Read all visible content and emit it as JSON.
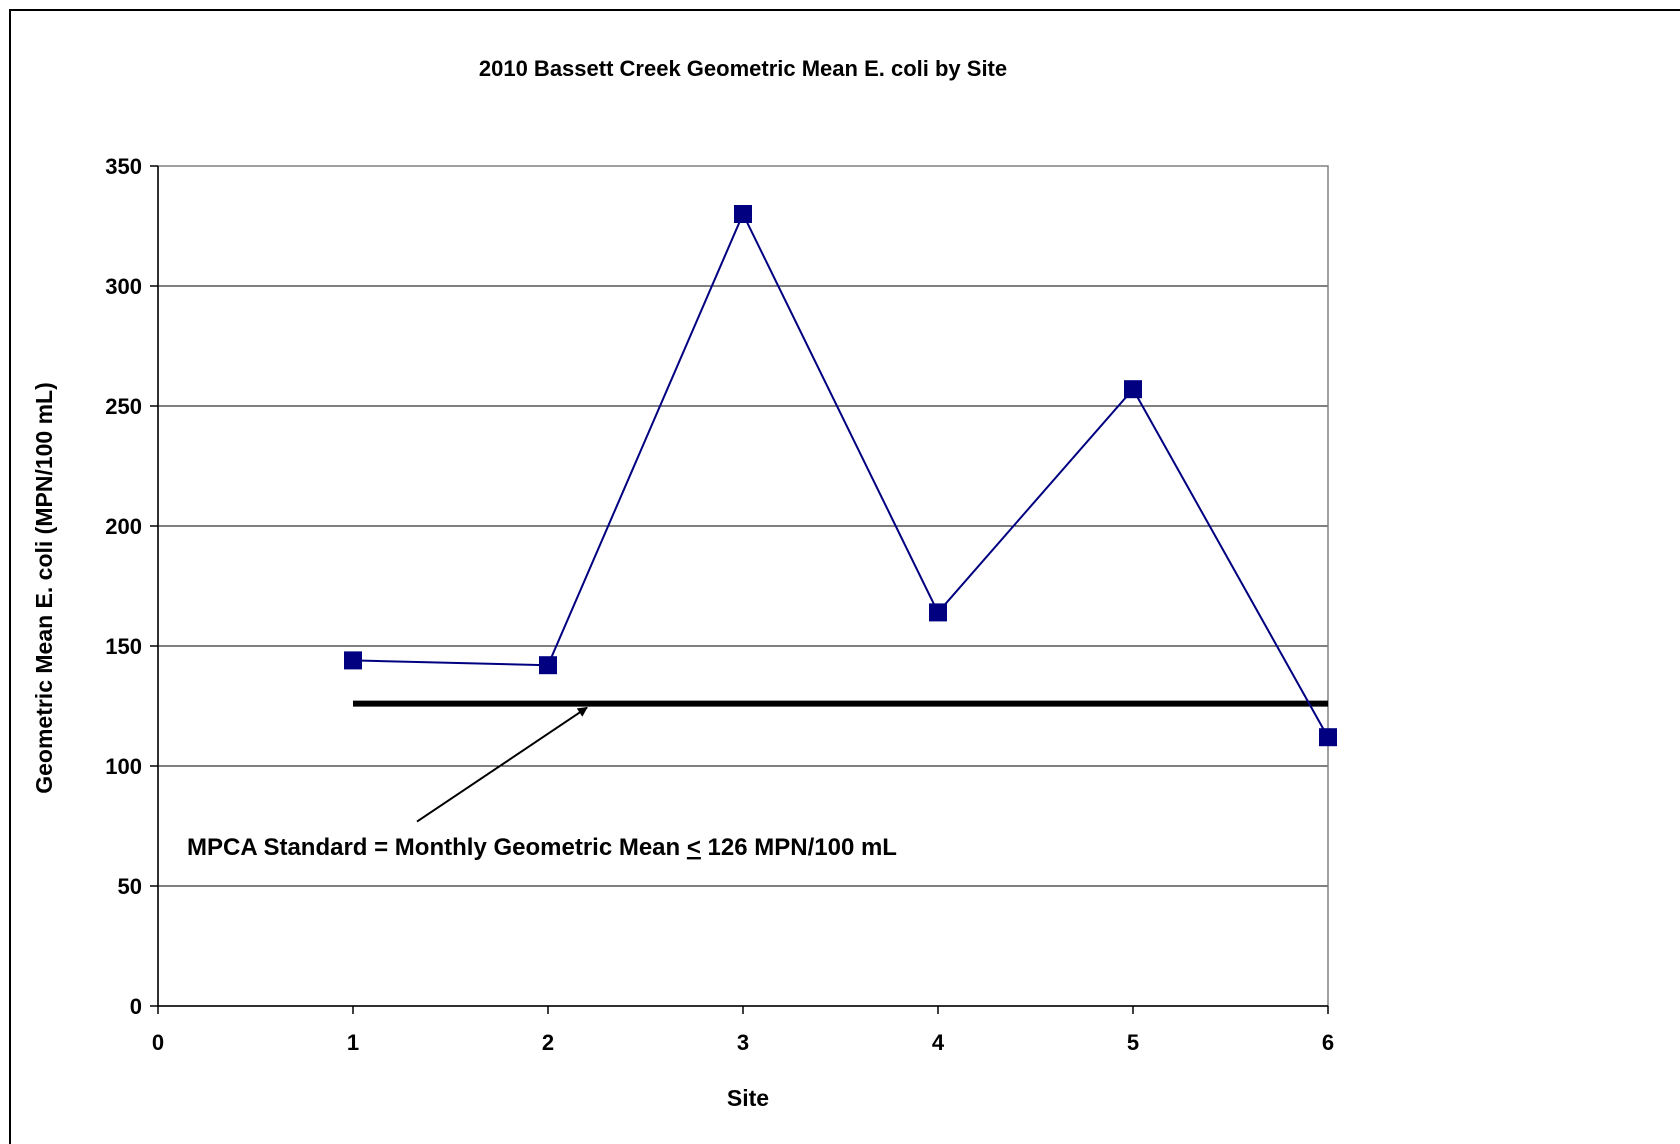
{
  "chart_data": {
    "type": "line",
    "title": "2010 Bassett Creek Geometric Mean E. coli by Site",
    "xlabel": "Site",
    "ylabel": "Geometric Mean E.  coli (MPN/100 mL)",
    "xlim": [
      0,
      6
    ],
    "ylim": [
      0,
      350
    ],
    "x_ticks": [
      0,
      1,
      2,
      3,
      4,
      5,
      6
    ],
    "y_ticks": [
      0,
      50,
      100,
      150,
      200,
      250,
      300,
      350
    ],
    "grid": {
      "horizontal": true,
      "vertical": false
    },
    "legend": "none",
    "series": [
      {
        "color": "#000080",
        "marker": "square",
        "points": [
          {
            "x": 1,
            "y": 144
          },
          {
            "x": 2,
            "y": 142
          },
          {
            "x": 3,
            "y": 330
          },
          {
            "x": 4,
            "y": 164
          },
          {
            "x": 5,
            "y": 257
          },
          {
            "x": 6,
            "y": 112
          }
        ]
      }
    ],
    "reference_line": {
      "y": 126,
      "x_start": 1,
      "x_end": 6,
      "color": "#000000"
    },
    "annotation": {
      "text_before": "MPCA Standard = Monthly Geometric Mean ",
      "symbol": "<",
      "text_after": " 126 MPN/100 mL",
      "arrow_target": {
        "x": 2.2,
        "y": 126
      }
    }
  }
}
